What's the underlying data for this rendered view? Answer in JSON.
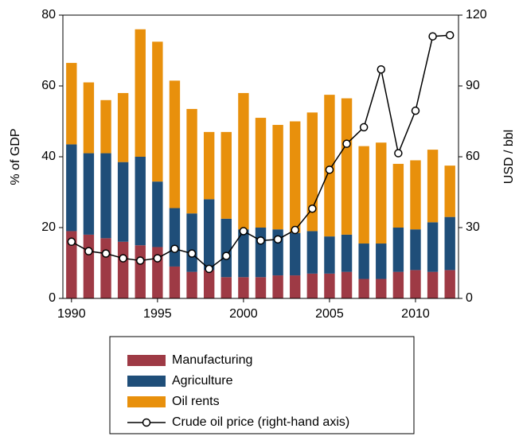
{
  "chart_data": {
    "type": "bar-line",
    "x": [
      1990,
      1991,
      1992,
      1993,
      1994,
      1995,
      1996,
      1997,
      1998,
      1999,
      2000,
      2001,
      2002,
      2003,
      2004,
      2005,
      2006,
      2007,
      2008,
      2009,
      2010,
      2011,
      2012
    ],
    "xlim": [
      1989.5,
      2012.5
    ],
    "xticks": [
      1990,
      1995,
      2000,
      2005,
      2010
    ],
    "ylabel": "% of GDP",
    "ylim": [
      0,
      80
    ],
    "yticks": [
      0,
      20,
      40,
      60,
      80
    ],
    "y2label": "USD / bbl",
    "y2lim": [
      0,
      120
    ],
    "y2ticks": [
      0,
      30,
      60,
      90,
      120
    ],
    "series": [
      {
        "name": "Manufacturing",
        "color": "#9e3a45",
        "values": [
          19,
          18,
          17,
          16,
          15,
          14.5,
          9,
          7.5,
          8,
          6,
          6,
          6,
          6.5,
          6.5,
          7,
          7,
          7.5,
          5.5,
          5.5,
          7.5,
          8,
          7.5,
          8
        ]
      },
      {
        "name": "Agriculture",
        "color": "#1f4e79",
        "values": [
          24.5,
          23,
          24,
          22.5,
          25,
          18.5,
          16.5,
          16.5,
          20,
          16.5,
          13.5,
          14,
          13,
          12,
          12,
          10.5,
          10.5,
          10,
          10,
          12.5,
          11.5,
          14,
          15
        ]
      },
      {
        "name": "Oil rents",
        "color": "#e8900c",
        "values": [
          23,
          20,
          15,
          19.5,
          36,
          39.5,
          36,
          29.5,
          19,
          24.5,
          38.5,
          31,
          29.5,
          31.5,
          33.5,
          40,
          38.5,
          27.5,
          28.5,
          18,
          19.5,
          20.5,
          14.5
        ]
      },
      {
        "name": "Crude oil price (right-hand axis)",
        "color": "#000000",
        "axis": "y2",
        "values": [
          24,
          20,
          19,
          17,
          16,
          17,
          21,
          19,
          12.5,
          18,
          28.5,
          24.5,
          25,
          29,
          38,
          54.5,
          65.5,
          72.5,
          97,
          61.5,
          79.5,
          111,
          111.5
        ]
      }
    ]
  }
}
